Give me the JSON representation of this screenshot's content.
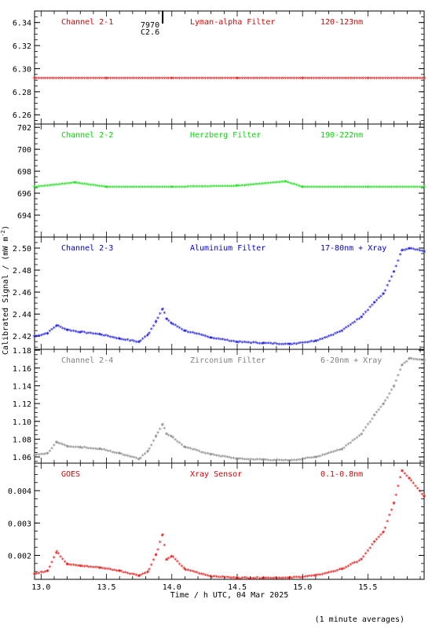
{
  "x_axis": {
    "label": "Time / h UTC, 04 Mar 2025",
    "ticks": [
      "13.0",
      "13.5",
      "14.0",
      "14.5",
      "15.0",
      "15.5"
    ],
    "range": [
      12.95,
      15.93
    ]
  },
  "y_axis_label": "Calibrated Signal / (mW m",
  "y_axis_label_sup": "-2",
  "y_axis_label_end": ")",
  "footnote": "(1 minute averages)",
  "marker": {
    "x": 13.93,
    "lines": [
      "7970",
      "C2.6"
    ]
  },
  "chart_data": [
    {
      "type": "scatter",
      "panel": "Channel 2-1",
      "channel": "Channel 2-1",
      "filter": "Lyman-alpha Filter",
      "band": "120-123nm",
      "color": "#e00000",
      "ylim": [
        6.252,
        6.35
      ],
      "yticks": [
        "6.26",
        "6.28",
        "6.30",
        "6.32",
        "6.34"
      ],
      "x": [
        12.95,
        13.5,
        14.0,
        14.5,
        15.0,
        15.5,
        15.93
      ],
      "y": [
        6.291,
        6.291,
        6.291,
        6.291,
        6.291,
        6.291,
        6.291
      ]
    },
    {
      "type": "scatter",
      "panel": "Channel 2-2",
      "channel": "Channel 2-2",
      "filter": "Herzberg Filter",
      "band": "190-222nm",
      "color": "#00dd00",
      "ylim": [
        692.0,
        702.3
      ],
      "yticks": [
        "694",
        "696",
        "698",
        "700",
        "702"
      ],
      "x": [
        12.95,
        13.26,
        13.5,
        14.0,
        14.5,
        14.87,
        15.0,
        15.5,
        15.93
      ],
      "y": [
        696.5,
        696.9,
        696.5,
        696.5,
        696.6,
        697.0,
        696.5,
        696.5,
        696.5
      ]
    },
    {
      "type": "scatter",
      "panel": "Channel 2-3",
      "channel": "Channel 2-3",
      "filter": "Aluminium Filter",
      "band": "17-80nm + Xray",
      "color": "#0000dd",
      "ylim": [
        2.408,
        2.51
      ],
      "yticks": [
        "2.42",
        "2.44",
        "2.46",
        "2.48",
        "2.50"
      ],
      "x": [
        12.95,
        13.05,
        13.12,
        13.2,
        13.3,
        13.45,
        13.6,
        13.75,
        13.82,
        13.88,
        13.93,
        13.96,
        14.0,
        14.1,
        14.3,
        14.5,
        14.7,
        14.9,
        15.1,
        15.3,
        15.45,
        15.55,
        15.62,
        15.7,
        15.76,
        15.82,
        15.93
      ],
      "y": [
        2.419,
        2.422,
        2.429,
        2.425,
        2.423,
        2.421,
        2.417,
        2.414,
        2.421,
        2.433,
        2.444,
        2.435,
        2.431,
        2.424,
        2.418,
        2.414,
        2.413,
        2.412,
        2.415,
        2.424,
        2.437,
        2.45,
        2.458,
        2.478,
        2.497,
        2.499,
        2.496
      ]
    },
    {
      "type": "scatter",
      "panel": "Channel 2-4",
      "channel": "Channel 2-4",
      "filter": "Zirconium Filter",
      "band": "6-20nm + Xray",
      "color": "#808080",
      "ylim": [
        1.053,
        1.181
      ],
      "yticks": [
        "1.06",
        "1.08",
        "1.10",
        "1.12",
        "1.14",
        "1.16",
        "1.18"
      ],
      "x": [
        12.95,
        13.05,
        13.12,
        13.2,
        13.3,
        13.45,
        13.6,
        13.75,
        13.82,
        13.88,
        13.93,
        13.96,
        14.0,
        14.1,
        14.3,
        14.5,
        14.7,
        14.9,
        15.1,
        15.3,
        15.45,
        15.55,
        15.62,
        15.7,
        15.76,
        15.82,
        15.93
      ],
      "y": [
        1.061,
        1.063,
        1.076,
        1.071,
        1.07,
        1.068,
        1.063,
        1.057,
        1.066,
        1.083,
        1.096,
        1.085,
        1.082,
        1.07,
        1.062,
        1.057,
        1.056,
        1.055,
        1.059,
        1.068,
        1.085,
        1.106,
        1.119,
        1.139,
        1.162,
        1.17,
        1.168
      ]
    },
    {
      "type": "scatter",
      "panel": "GOES",
      "channel": "GOES",
      "filter": "Xray Sensor",
      "band": "0.1-0.8nm",
      "color": "#e00000",
      "ylim": [
        0.00126,
        0.00485
      ],
      "yticks": [
        "0.002",
        "0.003",
        "0.004"
      ],
      "x": [
        12.95,
        13.05,
        13.12,
        13.2,
        13.3,
        13.45,
        13.6,
        13.75,
        13.82,
        13.88,
        13.93,
        13.96,
        14.0,
        14.1,
        14.3,
        14.5,
        14.7,
        14.9,
        15.1,
        15.3,
        15.45,
        15.55,
        15.62,
        15.7,
        15.76,
        15.82,
        15.93
      ],
      "y": [
        0.0014,
        0.0015,
        0.0021,
        0.0017,
        0.00165,
        0.0016,
        0.0015,
        0.00135,
        0.00148,
        0.002,
        0.00262,
        0.00185,
        0.00195,
        0.00155,
        0.00133,
        0.00128,
        0.00128,
        0.00128,
        0.00135,
        0.00155,
        0.00185,
        0.0024,
        0.0027,
        0.0036,
        0.0046,
        0.00435,
        0.0038
      ]
    }
  ]
}
